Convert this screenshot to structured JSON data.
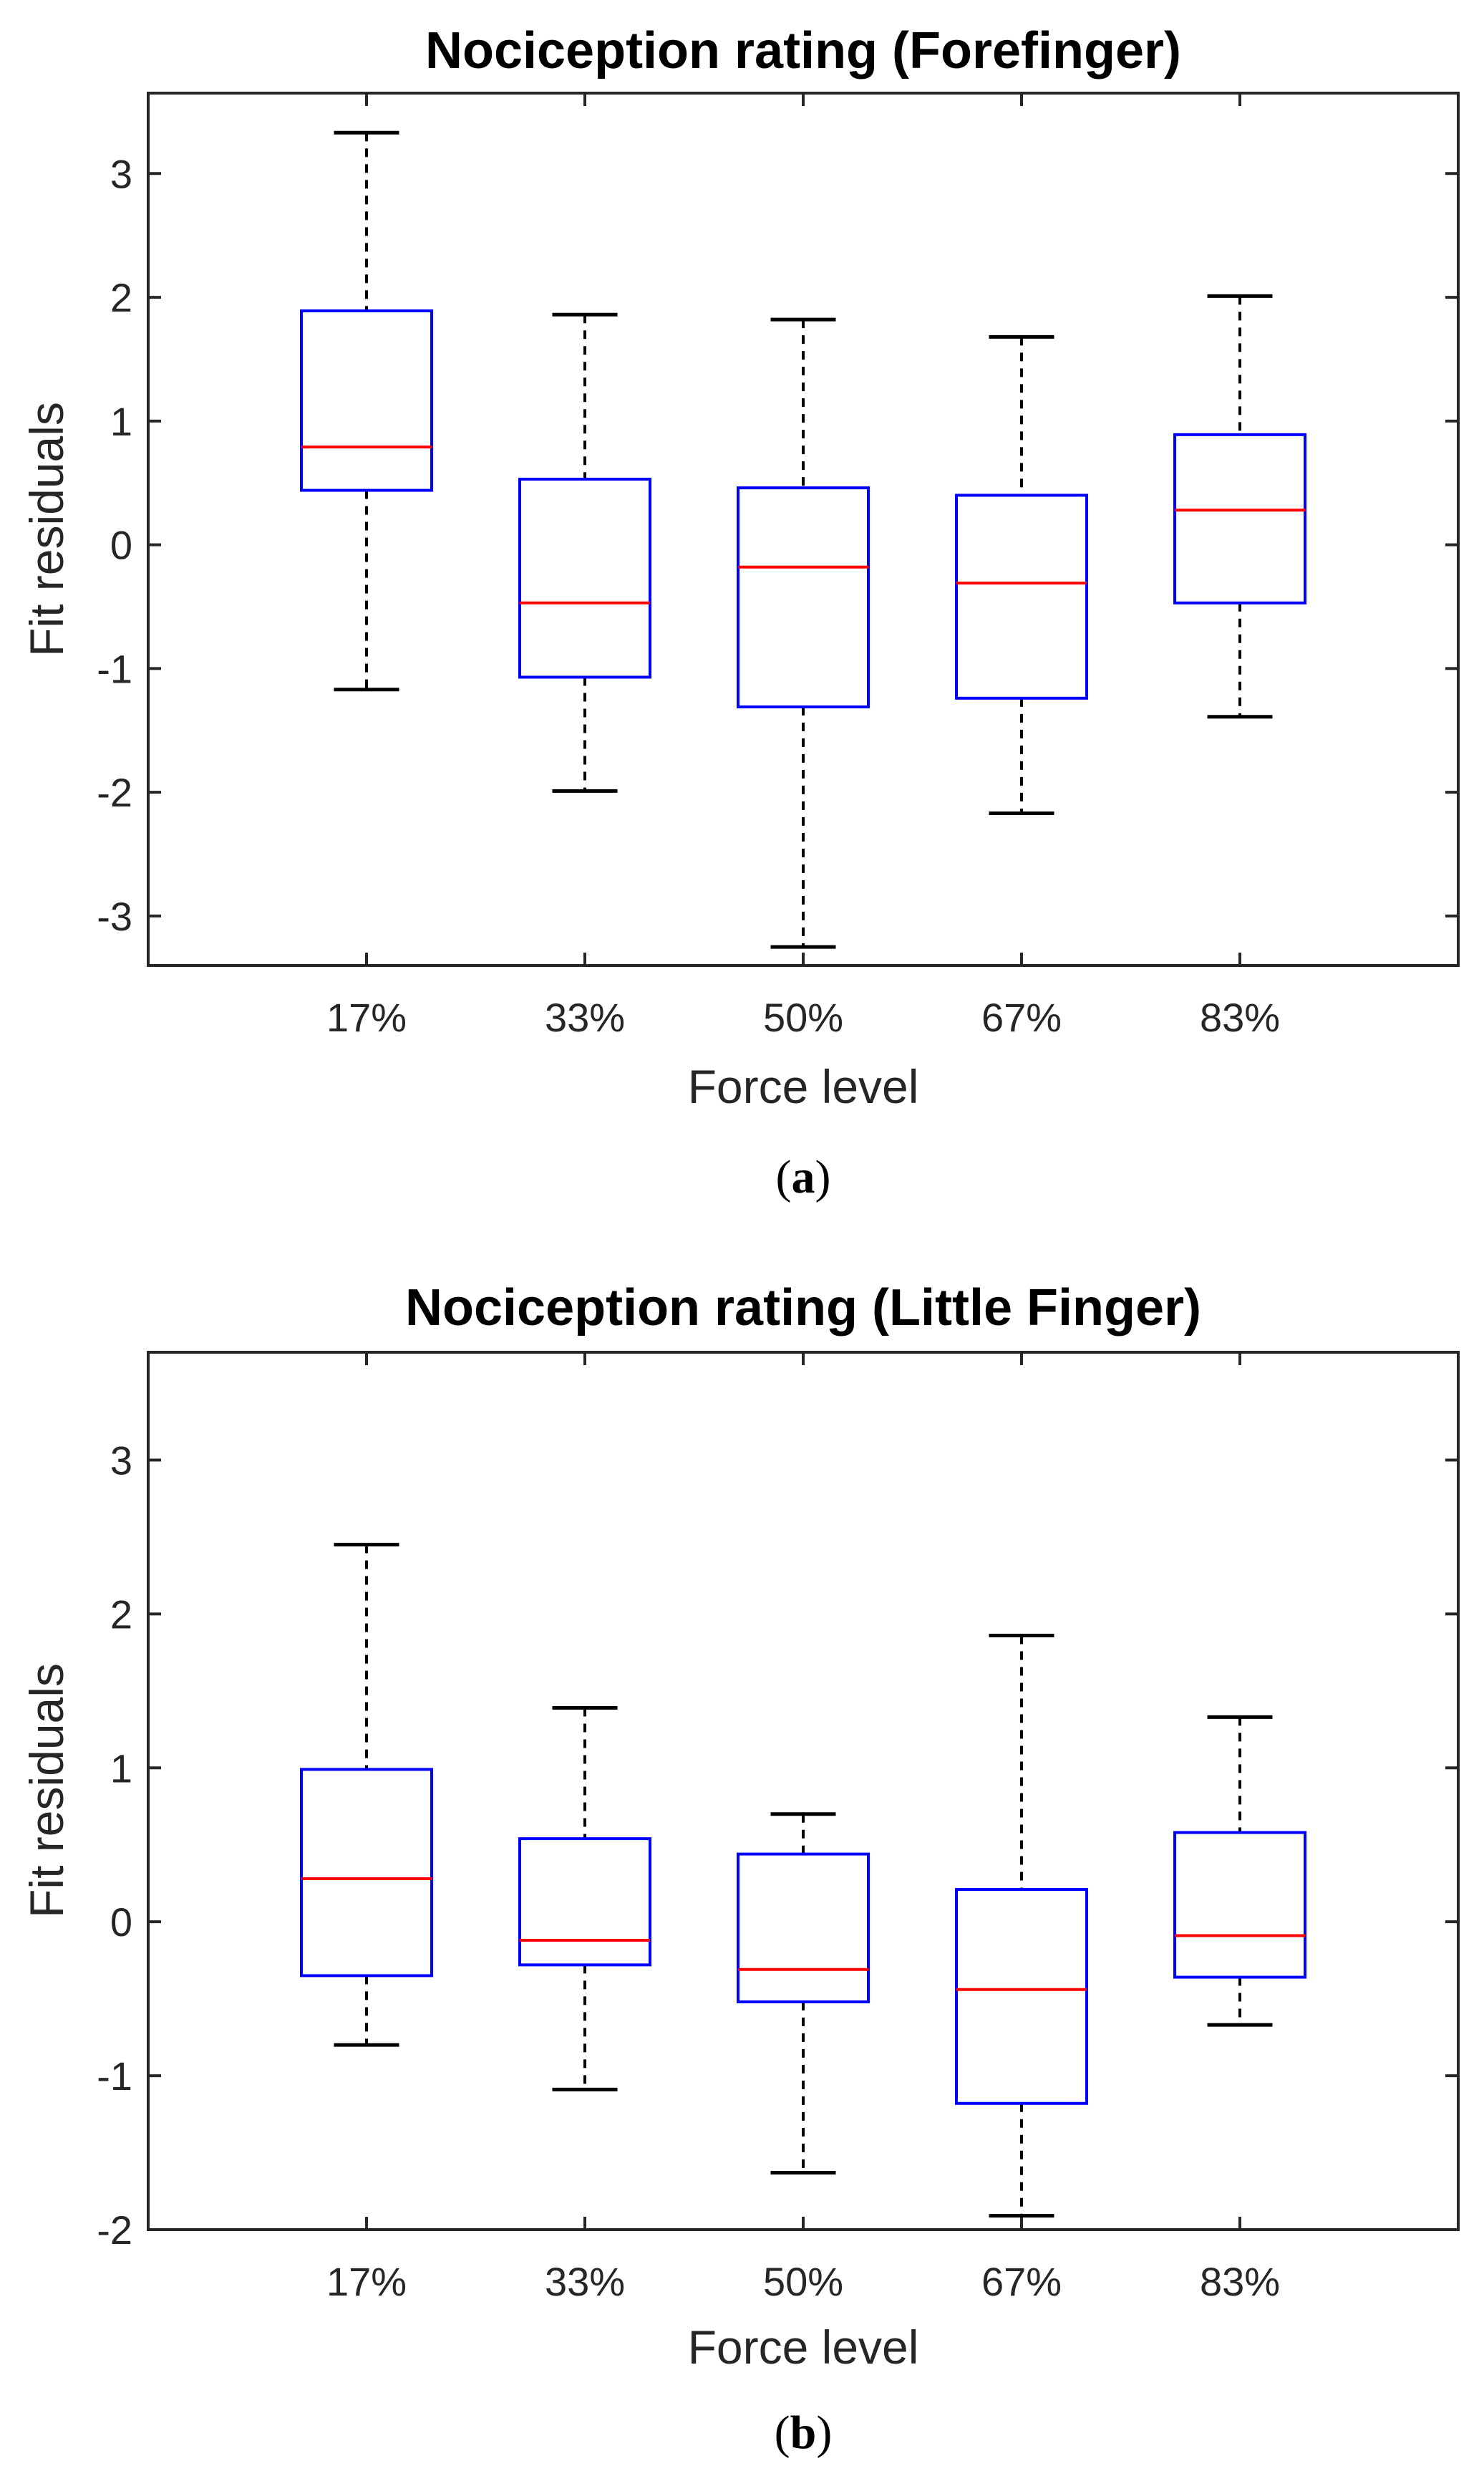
{
  "chart_data": [
    {
      "type": "boxplot",
      "title": "Nociception rating (Forefinger)",
      "xlabel": "Force level",
      "ylabel": "Fit residuals",
      "caption_letter": "a",
      "categories": [
        "17%",
        "33%",
        "50%",
        "67%",
        "83%"
      ],
      "ylim": [
        -3.4,
        3.65
      ],
      "yticks": [
        -3,
        -2,
        -1,
        0,
        1,
        2,
        3
      ],
      "ytick_labels": [
        "-3",
        "-2",
        "-1",
        "0",
        "1",
        "2",
        "3"
      ],
      "boxes": [
        {
          "category": "17%",
          "whisker_low": -1.17,
          "q1": 0.44,
          "median": 0.79,
          "q3": 1.89,
          "whisker_high": 3.33
        },
        {
          "category": "33%",
          "whisker_low": -1.99,
          "q1": -1.07,
          "median": -0.47,
          "q3": 0.53,
          "whisker_high": 1.86
        },
        {
          "category": "50%",
          "whisker_low": -3.25,
          "q1": -1.31,
          "median": -0.18,
          "q3": 0.46,
          "whisker_high": 1.82
        },
        {
          "category": "67%",
          "whisker_low": -2.17,
          "q1": -1.24,
          "median": -0.31,
          "q3": 0.4,
          "whisker_high": 1.68
        },
        {
          "category": "83%",
          "whisker_low": -1.39,
          "q1": -0.47,
          "median": 0.28,
          "q3": 0.89,
          "whisker_high": 2.01
        }
      ],
      "colors": {
        "box": "#0000FF",
        "median": "#FF0000",
        "whisker": "#000000"
      }
    },
    {
      "type": "boxplot",
      "title": "Nociception rating (Little Finger)",
      "xlabel": "Force level",
      "ylabel": "Fit residuals",
      "caption_letter": "b",
      "categories": [
        "17%",
        "33%",
        "50%",
        "67%",
        "83%"
      ],
      "ylim": [
        -2,
        3.7
      ],
      "yticks": [
        -2,
        -1,
        0,
        1,
        2,
        3
      ],
      "ytick_labels": [
        "-2",
        "-1",
        "0",
        "1",
        "2",
        "3"
      ],
      "boxes": [
        {
          "category": "17%",
          "whisker_low": -0.8,
          "q1": -0.35,
          "median": 0.28,
          "q3": 0.99,
          "whisker_high": 2.45
        },
        {
          "category": "33%",
          "whisker_low": -1.09,
          "q1": -0.28,
          "median": -0.12,
          "q3": 0.54,
          "whisker_high": 1.39
        },
        {
          "category": "50%",
          "whisker_low": -1.63,
          "q1": -0.52,
          "median": -0.31,
          "q3": 0.44,
          "whisker_high": 0.7
        },
        {
          "category": "67%",
          "whisker_low": -1.91,
          "q1": -1.18,
          "median": -0.44,
          "q3": 0.21,
          "whisker_high": 1.86
        },
        {
          "category": "83%",
          "whisker_low": -0.67,
          "q1": -0.36,
          "median": -0.09,
          "q3": 0.58,
          "whisker_high": 1.33
        }
      ],
      "colors": {
        "box": "#0000FF",
        "median": "#FF0000",
        "whisker": "#000000"
      }
    }
  ]
}
